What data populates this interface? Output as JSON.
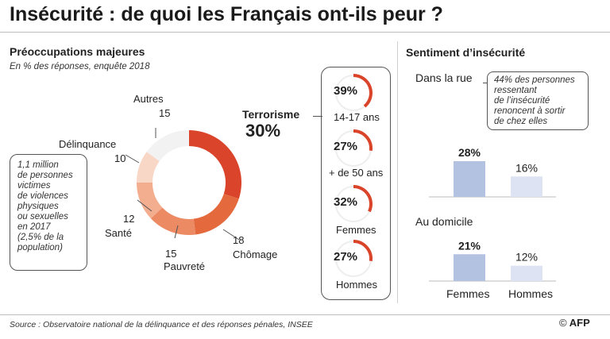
{
  "title": "Insécurité : de quoi les Français ont-ils peur ?",
  "left_panel": {
    "heading": "Préoccupations majeures",
    "subheading": "En % des réponses, enquête 2018",
    "note_lines": [
      "1,1 million",
      "de personnes",
      "victimes",
      "de violences",
      "physiques",
      "ou sexuelles",
      "en 2017",
      "(2,5% de la",
      "population)"
    ]
  },
  "terrorism_groups": [
    {
      "value_label": "39%",
      "value": 39,
      "group": "14-17 ans"
    },
    {
      "value_label": "27%",
      "value": 27,
      "group": "+ de 50 ans"
    },
    {
      "value_label": "32%",
      "value": 32,
      "group": "Femmes"
    },
    {
      "value_label": "27%",
      "value": 27,
      "group": "Hommes"
    }
  ],
  "right_panel": {
    "heading": "Sentiment d’insécurité",
    "street_label": "Dans la rue",
    "home_label": "Au domicile",
    "note_lines": [
      "44% des personnes",
      "ressentant",
      "de l’insécurité",
      "renoncent à sortir",
      "de chez elles"
    ]
  },
  "colors": {
    "terrorisme": "#d9442a",
    "chomage": "#e46a3e",
    "pauvrete": "#ec8a64",
    "sante": "#f3ad8f",
    "delinquance": "#f8d7c6",
    "autres": "#f2f2f2",
    "femmes_bar": "#b4c2e2",
    "hommes_bar": "#dde3f3",
    "ring_bg": "#eeeeee",
    "ring_fg": "#d9442a"
  },
  "chart_data": [
    {
      "type": "pie",
      "title": "Préoccupations majeures",
      "subtitle": "En % des réponses, enquête 2018",
      "slices": [
        {
          "label": "Terrorisme",
          "value": 30,
          "value_label": "30%"
        },
        {
          "label": "Chômage",
          "value": 18,
          "value_label": "18"
        },
        {
          "label": "Pauvreté",
          "value": 15,
          "value_label": "15"
        },
        {
          "label": "Santé",
          "value": 12,
          "value_label": "12"
        },
        {
          "label": "Délinquance",
          "value": 10,
          "value_label": "10"
        },
        {
          "label": "Autres",
          "value": 15,
          "value_label": "15"
        }
      ]
    },
    {
      "type": "bar",
      "title": "Sentiment d’insécurité",
      "subtitle": "Dans la rue",
      "categories": [
        "Femmes",
        "Hommes"
      ],
      "values": [
        28,
        16
      ],
      "value_labels": [
        "28%",
        "16%"
      ],
      "ylim": [
        0,
        40
      ]
    },
    {
      "type": "bar",
      "subtitle": "Au domicile",
      "categories": [
        "Femmes",
        "Hommes"
      ],
      "values": [
        21,
        12
      ],
      "value_labels": [
        "21%",
        "12%"
      ],
      "ylim": [
        0,
        40
      ]
    }
  ],
  "source": "Source : Observatoire national de la délinquance et des réponses pénales, INSEE",
  "credit": {
    "symbol": "©",
    "brand": "AFP"
  }
}
